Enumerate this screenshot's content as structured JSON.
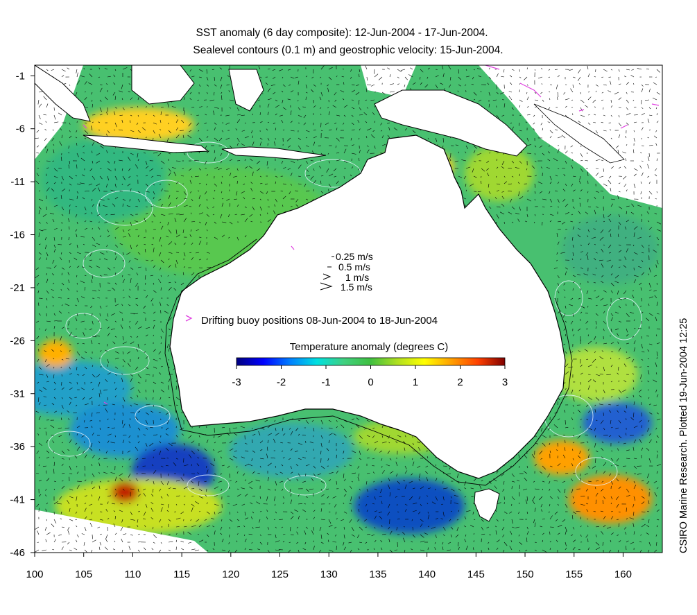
{
  "title": {
    "line1": "SST anomaly (6 day composite): 12-Jun-2004 - 17-Jun-2004.",
    "line2": "Sealevel contours (0.1 m) and geostrophic velocity: 15-Jun-2004."
  },
  "axes": {
    "x_ticks": [
      "100",
      "105",
      "110",
      "115",
      "120",
      "125",
      "130",
      "135",
      "140",
      "145",
      "150",
      "155",
      "160"
    ],
    "y_ticks": [
      "-1",
      "-6",
      "-11",
      "-16",
      "-21",
      "-26",
      "-31",
      "-36",
      "-41",
      "-46"
    ],
    "lon_range": [
      100,
      164
    ],
    "lat_range": [
      -46,
      0
    ]
  },
  "velocity_legend": {
    "items": [
      {
        "label": "0.25 m/s",
        "speed": 0.25
      },
      {
        "label": "0.5 m/s",
        "speed": 0.5
      },
      {
        "label": "1 m/s",
        "speed": 1
      },
      {
        "label": "1.5 m/s",
        "speed": 1.5
      }
    ]
  },
  "buoy_legend": {
    "label": "Drifting buoy positions 08-Jun-2004 to 18-Jun-2004",
    "color": "#e040e0"
  },
  "colorbar": {
    "title": "Temperature anomaly (degrees C)",
    "ticks": [
      "-3",
      "-2",
      "-1",
      "0",
      "1",
      "2",
      "3"
    ],
    "range": [
      -3,
      3
    ],
    "colors": [
      "#00007f",
      "#0000ff",
      "#0080ff",
      "#00e0e0",
      "#40d080",
      "#40c040",
      "#b0e020",
      "#ffff00",
      "#ffa000",
      "#ff4000",
      "#800000"
    ]
  },
  "credit": "CSIRO Marine Research. Plotted 19-Jun-2004 12:25",
  "colors": {
    "land": "#ffffff",
    "coast": "#000000",
    "ocean_mid": "#40c060",
    "contour": "#e8f4ff",
    "missing": "#ffffff"
  }
}
